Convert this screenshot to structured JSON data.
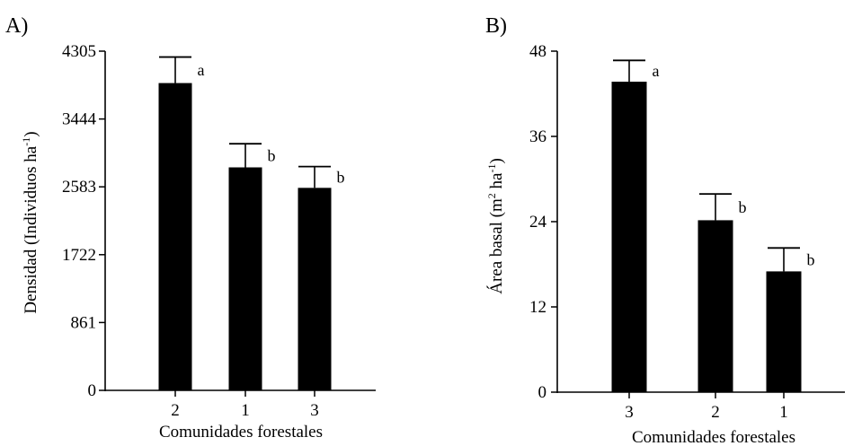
{
  "chart_data": [
    {
      "type": "bar",
      "panel_label": "A)",
      "categories": [
        "2",
        "1",
        "3"
      ],
      "values": [
        3900,
        2830,
        2570
      ],
      "errors": [
        330,
        300,
        270
      ],
      "significance": [
        "a",
        "b",
        "b"
      ],
      "yticks": [
        "0",
        "861",
        "1722",
        "2583",
        "3444",
        "4305"
      ],
      "ylim": [
        0,
        4305
      ],
      "xlabel": "Comunidades forestales",
      "ylabel_main": "Densidad (Individuos ha",
      "ylabel_sup": "-1",
      "ylabel_tail": ")",
      "bar_color": "#000000"
    },
    {
      "type": "bar",
      "panel_label": "B)",
      "categories": [
        "3",
        "2",
        "1"
      ],
      "values": [
        43.7,
        24.2,
        17.0
      ],
      "errors": [
        3.0,
        3.7,
        3.3
      ],
      "significance": [
        "a",
        "b",
        "b"
      ],
      "yticks": [
        "0",
        "12",
        "24",
        "36",
        "48"
      ],
      "ylim": [
        0,
        48
      ],
      "xlabel": "Comunidades forestales",
      "ylabel_main": "Área basal (m",
      "ylabel_sup1": "2",
      "ylabel_mid": " ha",
      "ylabel_sup2": "-1",
      "ylabel_tail": ")",
      "bar_color": "#000000"
    }
  ]
}
